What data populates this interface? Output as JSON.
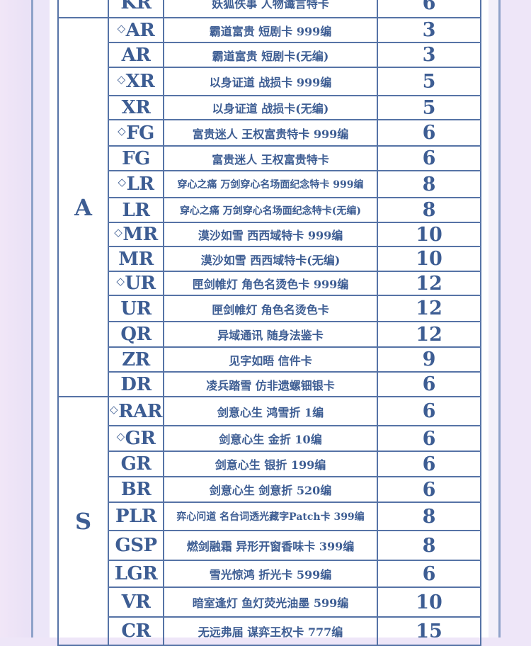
{
  "colors": {
    "text": "#3d5d93",
    "border": "#5673a6",
    "background": "#eee6f8"
  },
  "marker_symbol": "◇",
  "sections": [
    {
      "group": "",
      "rows": [
        {
          "code": "KR",
          "marked": false,
          "name": "妖狐佚事 人物谶言特卡",
          "count": "6"
        }
      ]
    },
    {
      "group": "A",
      "rows": [
        {
          "code": "AR",
          "marked": true,
          "name": "霸道富贵 短剧卡 999编",
          "count": "3"
        },
        {
          "code": "AR",
          "marked": false,
          "name": "霸道富贵 短剧卡(无编)",
          "count": "3"
        },
        {
          "code": "XR",
          "marked": true,
          "name": "以身证道 战损卡 999编",
          "count": "5"
        },
        {
          "code": "XR",
          "marked": false,
          "name": "以身证道 战损卡(无编)",
          "count": "5"
        },
        {
          "code": "FG",
          "marked": true,
          "name": "富贵迷人 王权富贵特卡 999编",
          "count": "6"
        },
        {
          "code": "FG",
          "marked": false,
          "name": "富贵迷人 王权富贵特卡",
          "count": "6"
        },
        {
          "code": "LR",
          "marked": true,
          "name": "穿心之痛 万剑穿心名场面纪念特卡 999编",
          "count": "8"
        },
        {
          "code": "LR",
          "marked": false,
          "name": "穿心之痛 万剑穿心名场面纪念特卡(无编)",
          "count": "8"
        },
        {
          "code": "MR",
          "marked": true,
          "name": "漠沙如雪 西西域特卡 999编",
          "count": "10"
        },
        {
          "code": "MR",
          "marked": false,
          "name": "漠沙如雪 西西域特卡(无编)",
          "count": "10"
        },
        {
          "code": "UR",
          "marked": true,
          "name": "匣剑帷灯 角色名烫色卡 999编",
          "count": "12"
        },
        {
          "code": "UR",
          "marked": false,
          "name": "匣剑帷灯 角色名烫色卡",
          "count": "12"
        },
        {
          "code": "QR",
          "marked": false,
          "name": "异域通讯 随身法鉴卡",
          "count": "12"
        },
        {
          "code": "ZR",
          "marked": false,
          "name": "见字如晤 信件卡",
          "count": "9"
        },
        {
          "code": "DR",
          "marked": false,
          "name": "凌兵踏雪 仿非遗螺钿银卡",
          "count": "6"
        }
      ]
    },
    {
      "group": "S",
      "rows": [
        {
          "code": "RAR",
          "marked": true,
          "name": "剑意心生 鸿雪折 1编",
          "count": "6"
        },
        {
          "code": "GR",
          "marked": true,
          "name": "剑意心生 金折 10编",
          "count": "6"
        },
        {
          "code": "GR",
          "marked": false,
          "name": "剑意心生 银折 199编",
          "count": "6"
        },
        {
          "code": "BR",
          "marked": false,
          "name": "剑意心生 剑意折 520编",
          "count": "6"
        },
        {
          "code": "PLR",
          "marked": false,
          "name": "弈心问道 名台词透光藏字Patch卡 399编",
          "count": "8"
        },
        {
          "code": "GSP",
          "marked": false,
          "name": "燃剑融霜 异形开窗香味卡 399编",
          "count": "8"
        },
        {
          "code": "LGR",
          "marked": false,
          "name": "雪光惊鸿 折光卡 599编",
          "count": "6"
        },
        {
          "code": "VR",
          "marked": false,
          "name": "暗室逢灯 鱼灯荧光油墨 599编",
          "count": "10"
        },
        {
          "code": "CR",
          "marked": false,
          "name": "无远弗届 谋弈王权卡 777编",
          "count": "15"
        }
      ]
    }
  ]
}
